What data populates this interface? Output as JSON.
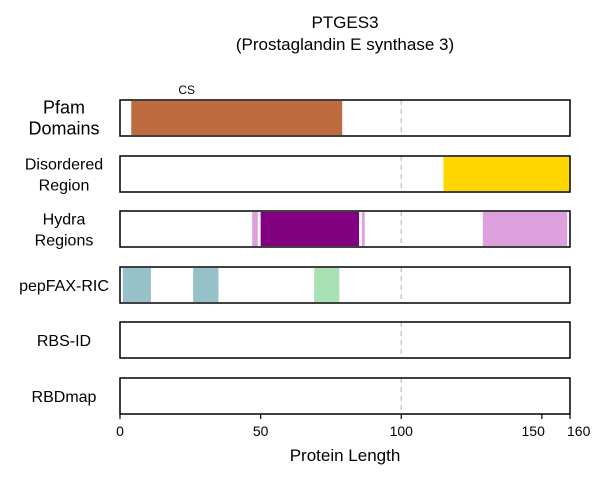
{
  "chart_data": {
    "type": "bar",
    "title": "PTGES3",
    "subtitle": "(Prostaglandin E synthase 3)",
    "xlabel": "Protein Length",
    "xlim": [
      0,
      160
    ],
    "xticks": [
      0,
      50,
      100,
      150,
      160
    ],
    "tick_labels": [
      "0",
      "50",
      "100",
      "150",
      "160"
    ],
    "reference_line_x": 100,
    "tracks": [
      {
        "label_lines": [
          "Pfam",
          "Domains"
        ],
        "large": true,
        "segments": [
          {
            "start": 4,
            "end": 79,
            "color": "#be6b3f",
            "label": "CS"
          }
        ]
      },
      {
        "label_lines": [
          "Disordered",
          "Region"
        ],
        "large": false,
        "segments": [
          {
            "start": 115,
            "end": 160,
            "color": "#ffd700"
          }
        ]
      },
      {
        "label_lines": [
          "Hydra",
          "Regions"
        ],
        "large": false,
        "segments": [
          {
            "start": 47,
            "end": 49,
            "color": "#dda0dd"
          },
          {
            "start": 50,
            "end": 85,
            "color": "#800080"
          },
          {
            "start": 86,
            "end": 87,
            "color": "#dda0dd"
          },
          {
            "start": 129,
            "end": 159,
            "color": "#dda0dd"
          }
        ]
      },
      {
        "label_lines": [
          "pepFAX-RIC"
        ],
        "large": false,
        "segments": [
          {
            "start": 1,
            "end": 11,
            "color": "#96c1c8"
          },
          {
            "start": 26,
            "end": 35,
            "color": "#96c1c8"
          },
          {
            "start": 69,
            "end": 78,
            "color": "#a8e2b4"
          }
        ]
      },
      {
        "label_lines": [
          "RBS-ID"
        ],
        "large": false,
        "segments": []
      },
      {
        "label_lines": [
          "RBDmap"
        ],
        "large": false,
        "segments": []
      }
    ]
  }
}
